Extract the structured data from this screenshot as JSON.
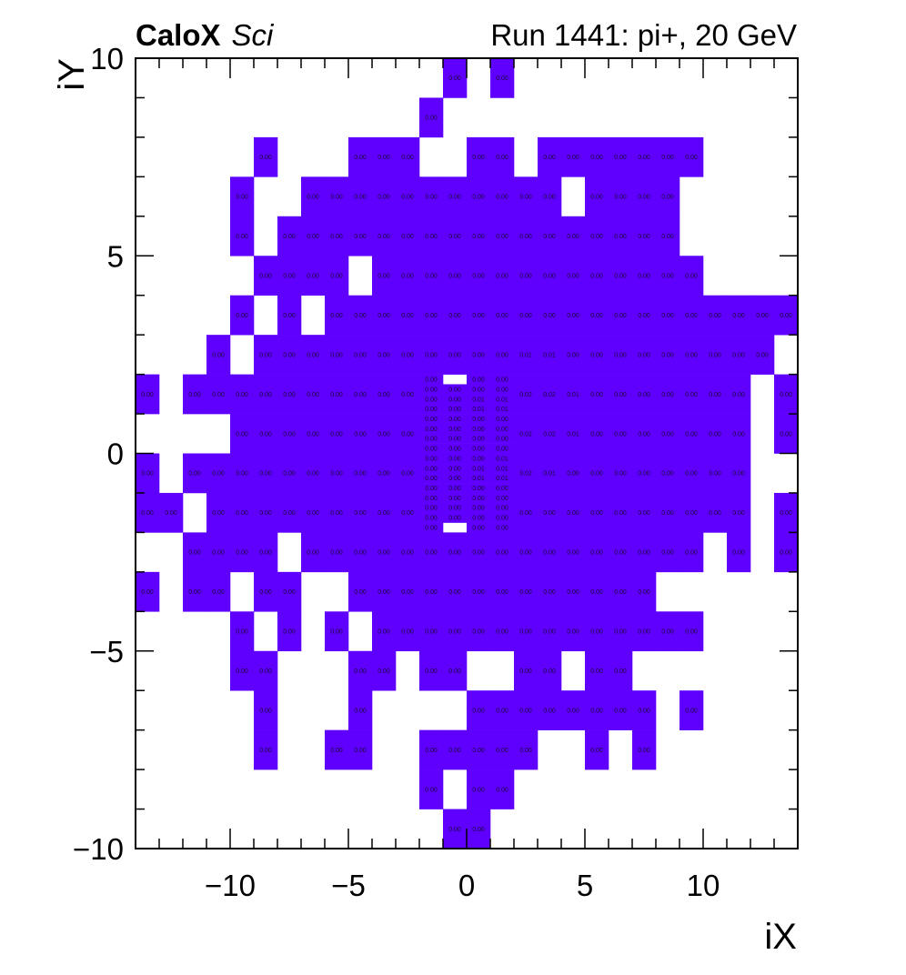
{
  "title": {
    "brand": "CaloX",
    "brand_suffix": "Sci",
    "run": "Run 1441: pi+, 20 GeV"
  },
  "chart_data": {
    "type": "heatmap",
    "title": "CaloX Sci — Run 1441: pi+, 20 GeV",
    "xlabel": "iX",
    "ylabel": "iY",
    "xlim": [
      -14,
      14
    ],
    "ylim": [
      -10,
      10
    ],
    "x_ticks": [
      {
        "v": -10,
        "label": "−10"
      },
      {
        "v": -5,
        "label": "−5"
      },
      {
        "v": 0,
        "label": "0"
      },
      {
        "v": 5,
        "label": "5"
      },
      {
        "v": 10,
        "label": "10"
      }
    ],
    "y_ticks": [
      {
        "v": -10,
        "label": "−10"
      },
      {
        "v": -5,
        "label": "−5"
      },
      {
        "v": 0,
        "label": "0"
      },
      {
        "v": 5,
        "label": "5"
      },
      {
        "v": 10,
        "label": "10"
      }
    ],
    "fill_color": "#5f00ff",
    "text_format": "0.00",
    "coarse_rows": [
      {
        "y": 9,
        "cells": [
          [
            -1,
            0
          ],
          [
            1,
            0
          ]
        ]
      },
      {
        "y": 8,
        "cells": [
          [
            -2,
            0
          ]
        ]
      },
      {
        "y": 7,
        "cells": [
          [
            -9,
            0
          ],
          [
            -5,
            0
          ],
          [
            -4,
            0
          ],
          [
            -3,
            0
          ],
          [
            0,
            0
          ],
          [
            1,
            0
          ],
          [
            3,
            0
          ],
          [
            4,
            0
          ],
          [
            5,
            0
          ],
          [
            6,
            0
          ],
          [
            7,
            0
          ],
          [
            8,
            0
          ],
          [
            9,
            0
          ]
        ]
      },
      {
        "y": 6,
        "cells": [
          [
            -10,
            0
          ],
          [
            -7,
            0
          ],
          [
            -6,
            0
          ],
          [
            -5,
            0
          ],
          [
            -4,
            0
          ],
          [
            -3,
            0
          ],
          [
            -2,
            0
          ],
          [
            -1,
            0
          ],
          [
            0,
            0
          ],
          [
            1,
            0
          ],
          [
            2,
            0
          ],
          [
            3,
            0
          ],
          [
            5,
            0
          ],
          [
            6,
            0
          ],
          [
            7,
            0
          ],
          [
            8,
            0
          ]
        ]
      },
      {
        "y": 5,
        "cells": [
          [
            -10,
            0
          ],
          [
            -8,
            0
          ],
          [
            -7,
            0
          ],
          [
            -6,
            0
          ],
          [
            -5,
            0
          ],
          [
            -4,
            0
          ],
          [
            -3,
            0
          ],
          [
            -2,
            0
          ],
          [
            -1,
            0
          ],
          [
            0,
            0
          ],
          [
            1,
            0
          ],
          [
            2,
            0
          ],
          [
            3,
            0
          ],
          [
            4,
            0
          ],
          [
            5,
            0
          ],
          [
            6,
            0
          ],
          [
            7,
            0
          ],
          [
            8,
            0
          ]
        ]
      },
      {
        "y": 4,
        "cells": [
          [
            -9,
            0
          ],
          [
            -8,
            0
          ],
          [
            -7,
            0
          ],
          [
            -6,
            0
          ],
          [
            -4,
            0
          ],
          [
            -3,
            0
          ],
          [
            -2,
            0
          ],
          [
            -1,
            0
          ],
          [
            0,
            0
          ],
          [
            1,
            0
          ],
          [
            2,
            0
          ],
          [
            3,
            0
          ],
          [
            4,
            0
          ],
          [
            5,
            0
          ],
          [
            6,
            0
          ],
          [
            7,
            0
          ],
          [
            8,
            0
          ],
          [
            9,
            0
          ]
        ]
      },
      {
        "y": 3,
        "cells": [
          [
            -10,
            0
          ],
          [
            -8,
            0
          ],
          [
            -6,
            0
          ],
          [
            -5,
            0
          ],
          [
            -4,
            0
          ],
          [
            -3,
            0
          ],
          [
            -2,
            0
          ],
          [
            -1,
            0
          ],
          [
            0,
            0
          ],
          [
            1,
            0
          ],
          [
            2,
            0
          ],
          [
            3,
            0
          ],
          [
            4,
            0
          ],
          [
            5,
            0
          ],
          [
            6,
            0
          ],
          [
            7,
            0
          ],
          [
            8,
            0
          ],
          [
            9,
            0
          ],
          [
            10,
            0
          ],
          [
            11,
            0
          ],
          [
            12,
            0
          ],
          [
            13,
            0
          ]
        ]
      },
      {
        "y": 2,
        "cells": [
          [
            -11,
            0
          ],
          [
            -9,
            0
          ],
          [
            -8,
            0
          ],
          [
            -7,
            0
          ],
          [
            -6,
            0
          ],
          [
            -5,
            0
          ],
          [
            -4,
            0
          ],
          [
            -3,
            0
          ],
          [
            -2,
            0
          ],
          [
            -1,
            0
          ],
          [
            0,
            0
          ],
          [
            1,
            0
          ],
          [
            2,
            0.01
          ],
          [
            3,
            0.01
          ],
          [
            4,
            0
          ],
          [
            5,
            0
          ],
          [
            6,
            0
          ],
          [
            7,
            0
          ],
          [
            8,
            0
          ],
          [
            9,
            0
          ],
          [
            10,
            0
          ],
          [
            11,
            0
          ],
          [
            12,
            0
          ]
        ]
      },
      {
        "y": 1,
        "cells": [
          [
            -14,
            0
          ],
          [
            -12,
            0
          ],
          [
            -11,
            0
          ],
          [
            -10,
            0
          ],
          [
            -9,
            0
          ],
          [
            -8,
            0
          ],
          [
            -7,
            0
          ],
          [
            -6,
            0
          ],
          [
            -5,
            0
          ],
          [
            -4,
            0
          ],
          [
            -3,
            0
          ],
          [
            2,
            0.02
          ],
          [
            3,
            0.02
          ],
          [
            4,
            0.01
          ],
          [
            5,
            0
          ],
          [
            6,
            0
          ],
          [
            7,
            0
          ],
          [
            8,
            0
          ],
          [
            9,
            0
          ],
          [
            10,
            0
          ],
          [
            11,
            0
          ],
          [
            13,
            0
          ]
        ]
      },
      {
        "y": 0,
        "cells": [
          [
            -10,
            0
          ],
          [
            -9,
            0
          ],
          [
            -8,
            0
          ],
          [
            -7,
            0
          ],
          [
            -6,
            0
          ],
          [
            -5,
            0
          ],
          [
            -4,
            0
          ],
          [
            -3,
            0
          ],
          [
            2,
            0.02
          ],
          [
            3,
            0.02
          ],
          [
            4,
            0.01
          ],
          [
            5,
            0
          ],
          [
            6,
            0
          ],
          [
            7,
            0
          ],
          [
            8,
            0
          ],
          [
            9,
            0
          ],
          [
            10,
            0
          ],
          [
            11,
            0
          ],
          [
            13,
            0
          ]
        ]
      },
      {
        "y": -1,
        "cells": [
          [
            -14,
            0
          ],
          [
            -12,
            0
          ],
          [
            -11,
            0
          ],
          [
            -10,
            0
          ],
          [
            -9,
            0
          ],
          [
            -8,
            0
          ],
          [
            -7,
            0
          ],
          [
            -6,
            0
          ],
          [
            -5,
            0
          ],
          [
            -4,
            0
          ],
          [
            -3,
            0
          ],
          [
            2,
            0.02
          ],
          [
            3,
            0.01
          ],
          [
            4,
            0
          ],
          [
            5,
            0
          ],
          [
            6,
            0
          ],
          [
            7,
            0
          ],
          [
            8,
            0
          ],
          [
            9,
            0
          ],
          [
            10,
            0
          ],
          [
            11,
            0
          ]
        ]
      },
      {
        "y": -2,
        "cells": [
          [
            -14,
            0
          ],
          [
            -13,
            0
          ],
          [
            -11,
            0
          ],
          [
            -10,
            0
          ],
          [
            -9,
            0
          ],
          [
            -8,
            0
          ],
          [
            -7,
            0
          ],
          [
            -6,
            0
          ],
          [
            -5,
            0
          ],
          [
            -4,
            0
          ],
          [
            -3,
            0
          ],
          [
            2,
            0
          ],
          [
            3,
            0
          ],
          [
            4,
            0
          ],
          [
            5,
            0
          ],
          [
            6,
            0
          ],
          [
            7,
            0
          ],
          [
            8,
            0
          ],
          [
            9,
            0
          ],
          [
            10,
            0
          ],
          [
            11,
            0
          ],
          [
            13,
            0
          ]
        ]
      },
      {
        "y": -3,
        "cells": [
          [
            -12,
            0
          ],
          [
            -11,
            0
          ],
          [
            -10,
            0
          ],
          [
            -9,
            0
          ],
          [
            -7,
            0
          ],
          [
            -6,
            0
          ],
          [
            -5,
            0
          ],
          [
            -4,
            0
          ],
          [
            -3,
            0
          ],
          [
            -2,
            0
          ],
          [
            -1,
            0
          ],
          [
            0,
            0
          ],
          [
            1,
            0
          ],
          [
            2,
            0
          ],
          [
            3,
            0
          ],
          [
            4,
            0
          ],
          [
            5,
            0
          ],
          [
            6,
            0
          ],
          [
            7,
            0
          ],
          [
            8,
            0
          ],
          [
            9,
            0
          ],
          [
            11,
            0
          ],
          [
            13,
            0
          ]
        ]
      },
      {
        "y": -4,
        "cells": [
          [
            -14,
            0
          ],
          [
            -12,
            0
          ],
          [
            -11,
            0
          ],
          [
            -9,
            0
          ],
          [
            -8,
            0
          ],
          [
            -5,
            0
          ],
          [
            -4,
            0
          ],
          [
            -3,
            0
          ],
          [
            -2,
            0
          ],
          [
            -1,
            0
          ],
          [
            0,
            0
          ],
          [
            1,
            0
          ],
          [
            2,
            0
          ],
          [
            3,
            0
          ],
          [
            4,
            0
          ],
          [
            5,
            0
          ],
          [
            6,
            0
          ],
          [
            7,
            0
          ]
        ]
      },
      {
        "y": -5,
        "cells": [
          [
            -10,
            0
          ],
          [
            -8,
            0
          ],
          [
            -6,
            0
          ],
          [
            -4,
            0
          ],
          [
            -3,
            0
          ],
          [
            -2,
            0
          ],
          [
            -1,
            0
          ],
          [
            0,
            0
          ],
          [
            1,
            0
          ],
          [
            2,
            0
          ],
          [
            3,
            0
          ],
          [
            4,
            0
          ],
          [
            5,
            0
          ],
          [
            6,
            0
          ],
          [
            7,
            0
          ],
          [
            8,
            0
          ],
          [
            9,
            0
          ]
        ]
      },
      {
        "y": -6,
        "cells": [
          [
            -10,
            0
          ],
          [
            -9,
            0
          ],
          [
            -5,
            0
          ],
          [
            -4,
            0
          ],
          [
            -2,
            0
          ],
          [
            -1,
            0
          ],
          [
            2,
            0
          ],
          [
            3,
            0
          ],
          [
            5,
            0
          ],
          [
            6,
            0
          ]
        ]
      },
      {
        "y": -7,
        "cells": [
          [
            -9,
            0
          ],
          [
            -5,
            0
          ],
          [
            0,
            0
          ],
          [
            1,
            0
          ],
          [
            2,
            0
          ],
          [
            3,
            0
          ],
          [
            4,
            0
          ],
          [
            5,
            0
          ],
          [
            6,
            0
          ],
          [
            7,
            0
          ],
          [
            9,
            0
          ]
        ]
      },
      {
        "y": -8,
        "cells": [
          [
            -9,
            0
          ],
          [
            -6,
            0
          ],
          [
            -5,
            0
          ],
          [
            -2,
            0
          ],
          [
            -1,
            0
          ],
          [
            0,
            0
          ],
          [
            1,
            0
          ],
          [
            2,
            0
          ],
          [
            5,
            0
          ],
          [
            7,
            0
          ]
        ]
      },
      {
        "y": -9,
        "cells": [
          [
            -2,
            0
          ],
          [
            0,
            0
          ],
          [
            1,
            0
          ]
        ]
      },
      {
        "y": -10,
        "cells": [
          [
            -1,
            0
          ],
          [
            0,
            0
          ]
        ]
      }
    ],
    "fine_region": {
      "x": [
        -2,
        -1,
        0,
        1
      ],
      "y_top": 2,
      "y_step": 0.25,
      "rows": [
        [
          0,
          null,
          0,
          0
        ],
        [
          0,
          0,
          0,
          0
        ],
        [
          0,
          0,
          0.01,
          0.01
        ],
        [
          0,
          0,
          0.01,
          0.01
        ],
        [
          0,
          0,
          0,
          0
        ],
        [
          0,
          0,
          0,
          0
        ],
        [
          0,
          0,
          0,
          0
        ],
        [
          0,
          0,
          0,
          0
        ],
        [
          0,
          0,
          0,
          0.01
        ],
        [
          0,
          0,
          0.01,
          0.01
        ],
        [
          0,
          0,
          0.01,
          0.01
        ],
        [
          0,
          0,
          0,
          0
        ],
        [
          0,
          0,
          0,
          0
        ],
        [
          0,
          0,
          0,
          0
        ],
        [
          0,
          0,
          0,
          0
        ],
        [
          0,
          null,
          0,
          0
        ]
      ]
    }
  }
}
